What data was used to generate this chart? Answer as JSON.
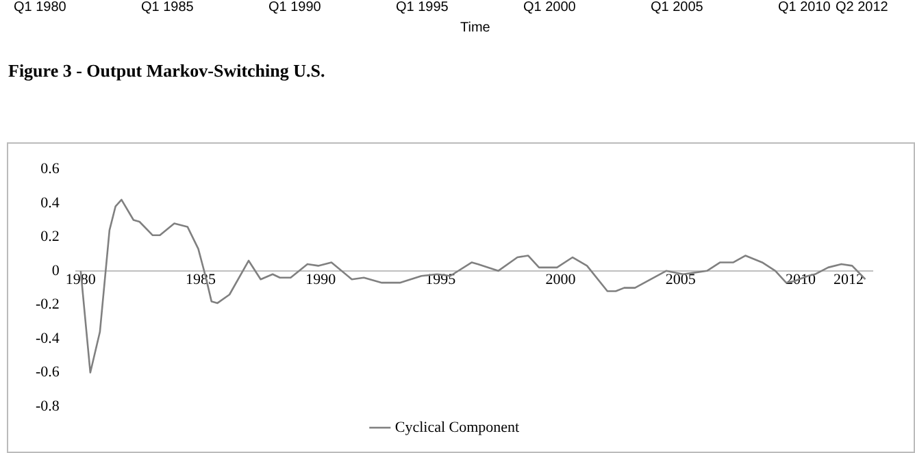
{
  "chart_data": {
    "type": "line",
    "title": "Figure 3 - Output Markov-Switching U.S.",
    "annotations": [
      "Q1 1980",
      "Q1 1985",
      "Q1 1990",
      "Q1 1995",
      "Q1 2000",
      "Q1 2005",
      "Q1 2010",
      "Q2 2012",
      "Time"
    ],
    "x": [
      1980.0,
      1980.4,
      1980.8,
      1981.2,
      1981.45,
      1981.7,
      1982.2,
      1982.45,
      1983.0,
      1983.3,
      1983.9,
      1984.45,
      1984.9,
      1985.2,
      1985.45,
      1985.7,
      1986.2,
      1987.0,
      1987.5,
      1988.0,
      1988.3,
      1988.75,
      1989.45,
      1989.9,
      1990.45,
      1991.3,
      1991.8,
      1992.55,
      1993.3,
      1994.2,
      1994.85,
      1995.4,
      1996.3,
      1996.55,
      1997.4,
      1998.2,
      1998.65,
      1999.1,
      1999.85,
      2000.5,
      2001.1,
      2001.95,
      2002.3,
      2002.65,
      2003.1,
      2004.4,
      2005.1,
      2006.1,
      2006.65,
      2007.2,
      2007.7,
      2008.4,
      2008.95,
      2009.4,
      2009.75,
      2010.3,
      2010.6,
      2011.15,
      2011.7,
      2012.15,
      2012.7
    ],
    "series": [
      {
        "name": "Cyclical Component",
        "color": "#808080",
        "values": [
          0.0,
          -0.6,
          -0.36,
          0.24,
          0.38,
          0.42,
          0.3,
          0.29,
          0.21,
          0.21,
          0.28,
          0.26,
          0.13,
          -0.03,
          -0.18,
          -0.19,
          -0.14,
          0.06,
          -0.05,
          -0.02,
          -0.04,
          -0.04,
          0.04,
          0.03,
          0.05,
          -0.05,
          -0.04,
          -0.07,
          -0.07,
          -0.03,
          -0.02,
          -0.03,
          0.05,
          0.04,
          0.0,
          0.08,
          0.09,
          0.02,
          0.02,
          0.08,
          0.03,
          -0.12,
          -0.12,
          -0.1,
          -0.1,
          0.0,
          -0.02,
          0.0,
          0.05,
          0.05,
          0.09,
          0.05,
          0.0,
          -0.07,
          -0.06,
          -0.03,
          -0.02,
          0.02,
          0.04,
          0.03,
          -0.05
        ]
      }
    ],
    "xlim": [
      1979.8,
      2013
    ],
    "xticks": [
      1980,
      1985,
      1990,
      1995,
      2000,
      2005,
      2010,
      2012
    ],
    "ylim": [
      -0.8,
      0.6
    ],
    "yticks": [
      -0.8,
      -0.6,
      -0.4,
      -0.2,
      0,
      0.2,
      0.4,
      0.6
    ],
    "grid": false,
    "legend": "bottom",
    "marker": "none",
    "line_style": "solid"
  }
}
